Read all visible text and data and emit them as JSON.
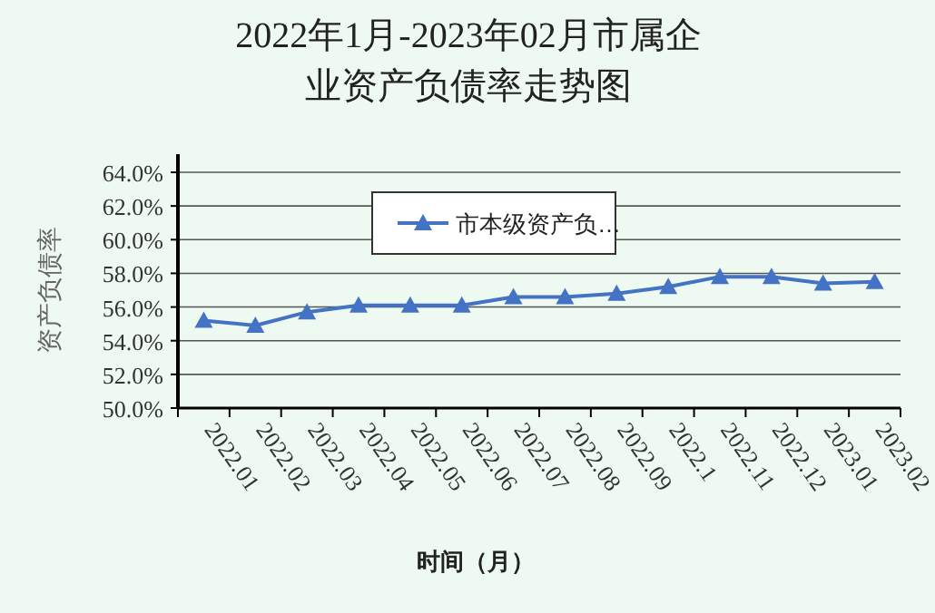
{
  "chart_data": {
    "type": "line",
    "title": "2022年1月-2023年02月市属企业资产负债率走势图",
    "xlabel": "时间（月）",
    "ylabel": "资产负债率",
    "categories": [
      "2022.01",
      "2022.02",
      "2022.03",
      "2022.04",
      "2022.05",
      "2022.06",
      "2022.07",
      "2022.08",
      "2022.09",
      "2022.1",
      "2022.11",
      "2022.12",
      "2023.01",
      "2023.02"
    ],
    "series": [
      {
        "name": "市本级资产负…",
        "color": "#4472c4",
        "values": [
          55.2,
          54.9,
          55.7,
          56.1,
          56.1,
          56.1,
          56.6,
          56.6,
          56.8,
          57.2,
          57.8,
          57.8,
          57.4,
          57.5
        ]
      }
    ],
    "ylim": [
      50,
      64
    ],
    "yticks": [
      {
        "value": 50,
        "label": "50.0%"
      },
      {
        "value": 52,
        "label": "52.0%"
      },
      {
        "value": 54,
        "label": "54.0%"
      },
      {
        "value": 56,
        "label": "56.0%"
      },
      {
        "value": 58,
        "label": "58.0%"
      },
      {
        "value": 60,
        "label": "60.0%"
      },
      {
        "value": 62,
        "label": "62.0%"
      },
      {
        "value": 64,
        "label": "64.0%"
      }
    ],
    "grid": "y",
    "legend": "top",
    "marker": "triangle",
    "line_style": "solid"
  }
}
